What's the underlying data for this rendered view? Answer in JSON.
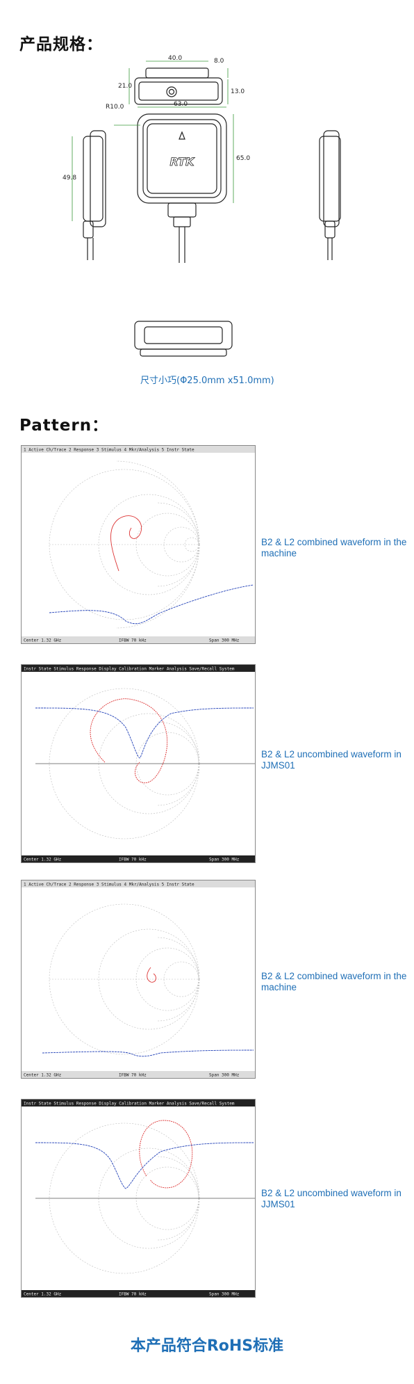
{
  "headings": {
    "spec": "产品规格：",
    "pattern": "Pattern："
  },
  "dimensions": {
    "top_width": "40.0",
    "height_left": "21.0",
    "height_right_top": "8.0",
    "height_right": "13.0",
    "radius": "R10.0",
    "front_width": "63.0",
    "front_height": "65.0",
    "side_height": "49.8",
    "logo": "RTK",
    "size_caption": "尺寸小巧(Φ25.0mm x51.0mm)"
  },
  "patterns": [
    {
      "caption": "B2 & L2 combined waveform in the machine",
      "menu": "1 Active Ch/Trace  2 Response  3 Stimulus  4 Mkr/Analysis  5 Instr State",
      "status_left": "Center 1.32 GHz",
      "status_mid": "IFBW 70 kHz",
      "status_right": "Span 300 MHz"
    },
    {
      "caption": "B2 & L2 uncombined waveform in JJMS01",
      "menu": "Instr State  Stimulus  Response  Display  Calibration  Marker  Analysis  Save/Recall  System",
      "status_left": "Center 1.32 GHz",
      "status_mid": "IFBW 70 kHz",
      "status_right": "Span 300 MHz"
    },
    {
      "caption": "B2 & L2 combined waveform in the machine",
      "menu": "1 Active Ch/Trace  2 Response  3 Stimulus  4 Mkr/Analysis  5 Instr State",
      "status_left": "Center 1.32 GHz",
      "status_mid": "IFBW 70 kHz",
      "status_right": "Span 300 MHz"
    },
    {
      "caption": "B2 & L2 uncombined waveform in JJMS01",
      "menu": "Instr State  Stimulus  Response  Display  Calibration  Marker  Analysis  Save/Recall  System",
      "status_left": "Center 1.32 GHz",
      "status_mid": "IFBW 70 kHz",
      "status_right": "Span 300 MHz"
    }
  ],
  "footer": "本产品符合RoHS标准",
  "colors": {
    "accent": "#1f6fb6",
    "trace_red": "#d33",
    "trace_blue": "#2342b8"
  }
}
